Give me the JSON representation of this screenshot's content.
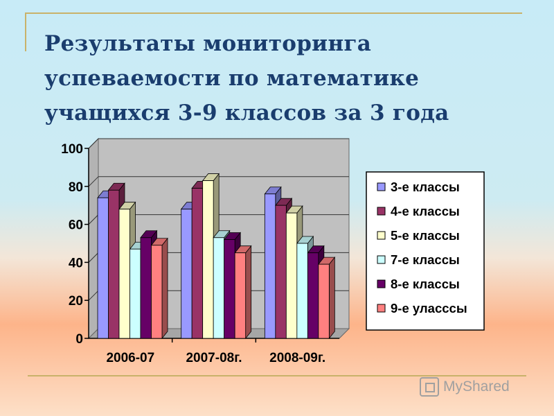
{
  "slide": {
    "title_lines": [
      "Результаты мониторинга",
      "успеваемости по математике",
      "учащихся 3-9 классов за 3 года"
    ],
    "watermark": "MyShared"
  },
  "chart_data": {
    "type": "bar",
    "title": "",
    "xlabel": "",
    "ylabel": "",
    "ylim": [
      0,
      100
    ],
    "yticks": [
      0,
      20,
      40,
      60,
      80,
      100
    ],
    "grid": true,
    "legend_position": "right",
    "categories": [
      "2006-07",
      "2007-08г.",
      "2008-09г."
    ],
    "series": [
      {
        "name": "3-е классы",
        "color": "#9999ff",
        "values": [
          74,
          68,
          76
        ]
      },
      {
        "name": "4-е классы",
        "color": "#993366",
        "values": [
          78,
          79,
          70
        ]
      },
      {
        "name": "5-е классы",
        "color": "#ffffcc",
        "values": [
          68,
          83,
          66
        ]
      },
      {
        "name": "7-е классы",
        "color": "#ccffff",
        "values": [
          47,
          53,
          50
        ]
      },
      {
        "name": "8-е классы",
        "color": "#660066",
        "values": [
          53,
          52,
          45
        ]
      },
      {
        "name": "9-е уласссы",
        "color": "#ff8080",
        "values": [
          49,
          45,
          39
        ]
      }
    ]
  }
}
